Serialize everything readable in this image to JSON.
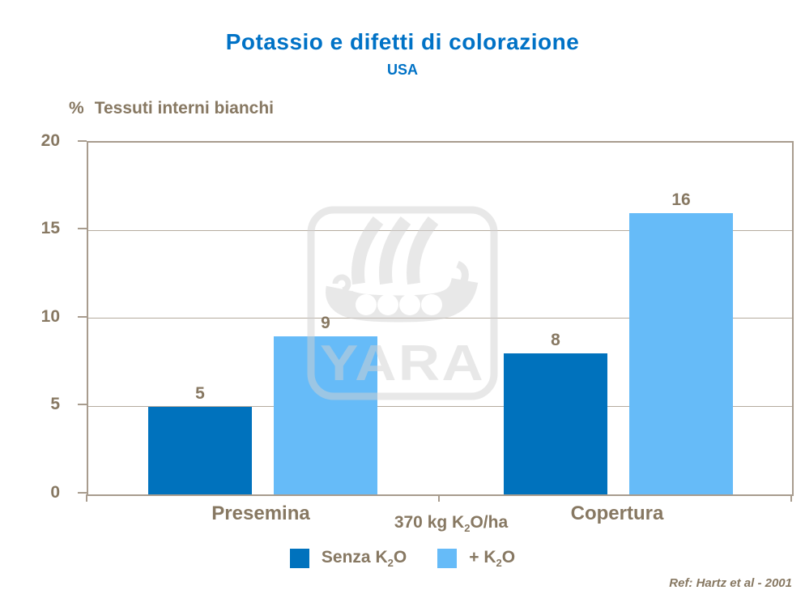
{
  "title": "Potassio e difetti di colorazione",
  "subtitle": "USA",
  "y_axis": {
    "unit": "%",
    "label": "Tessuti interni bianchi",
    "ticks": [
      "20",
      "15",
      "10",
      "5",
      "0"
    ]
  },
  "x_axis": {
    "categories": [
      "Presemina",
      "Copertura"
    ],
    "note": {
      "pre": "370 kg K",
      "sub": "2",
      "post": "O/ha"
    }
  },
  "legend": [
    {
      "pre": "Senza K",
      "sub": "2",
      "post": "O"
    },
    {
      "pre": "+ K",
      "sub": "2",
      "post": "O"
    }
  ],
  "reference": "Ref: Hartz et al - 2001",
  "watermark_text": "YARA",
  "colors": {
    "title_blue": "#0072C6",
    "text_brown": "#877862",
    "axis": "#A89C8E",
    "grid": "#B5AB9F",
    "watermark_gray": "#D2D2D2"
  },
  "chart_data": {
    "type": "bar",
    "categories": [
      "Presemina",
      "Copertura"
    ],
    "series": [
      {
        "name": "Senza K2O",
        "values": [
          5,
          8
        ],
        "color": "#0072BD"
      },
      {
        "name": "+ K2O",
        "values": [
          9,
          16
        ],
        "color": "#66BBF8"
      }
    ],
    "title": "Potassio e difetti di colorazione",
    "subtitle": "USA",
    "ylabel": "% Tessuti interni bianchi",
    "xlabel": "370 kg K2O/ha",
    "ylim": [
      0,
      20
    ],
    "yticks": [
      0,
      5,
      10,
      15,
      20
    ],
    "grid": true,
    "legend_position": "bottom",
    "bar_value_labels": true,
    "reference": "Ref: Hartz et al - 2001"
  }
}
